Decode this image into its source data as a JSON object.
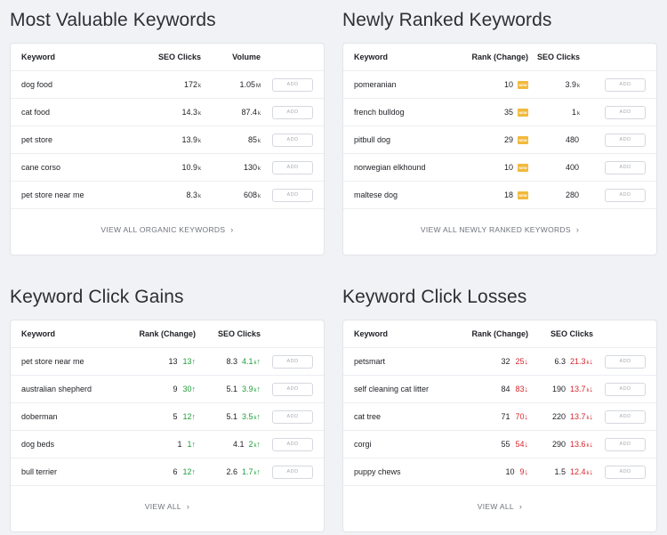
{
  "sections": {
    "most_valuable": {
      "title": "Most Valuable Keywords",
      "headers": {
        "keyword": "Keyword",
        "seo_clicks": "SEO Clicks",
        "volume": "Volume"
      },
      "rows": [
        {
          "keyword": "dog food",
          "clicks": "172",
          "clicks_unit": "k",
          "volume": "1.05",
          "volume_unit": "M",
          "add": "ADD"
        },
        {
          "keyword": "cat food",
          "clicks": "14.3",
          "clicks_unit": "k",
          "volume": "87.4",
          "volume_unit": "k",
          "add": "ADD"
        },
        {
          "keyword": "pet store",
          "clicks": "13.9",
          "clicks_unit": "k",
          "volume": "85",
          "volume_unit": "k",
          "add": "ADD"
        },
        {
          "keyword": "cane corso",
          "clicks": "10.9",
          "clicks_unit": "k",
          "volume": "130",
          "volume_unit": "k",
          "add": "ADD"
        },
        {
          "keyword": "pet store near me",
          "clicks": "8.3",
          "clicks_unit": "k",
          "volume": "608",
          "volume_unit": "k",
          "add": "ADD"
        }
      ],
      "footer": "VIEW ALL ORGANIC KEYWORDS"
    },
    "newly_ranked": {
      "title": "Newly Ranked Keywords",
      "headers": {
        "keyword": "Keyword",
        "rank": "Rank (Change)",
        "seo_clicks": "SEO Clicks"
      },
      "badge": "NEW",
      "rows": [
        {
          "keyword": "pomeranian",
          "rank": "10",
          "clicks": "3.9",
          "clicks_unit": "k",
          "add": "ADD"
        },
        {
          "keyword": "french bulldog",
          "rank": "35",
          "clicks": "1",
          "clicks_unit": "k",
          "add": "ADD"
        },
        {
          "keyword": "pitbull dog",
          "rank": "29",
          "clicks": "480",
          "clicks_unit": "",
          "add": "ADD"
        },
        {
          "keyword": "norwegian elkhound",
          "rank": "10",
          "clicks": "400",
          "clicks_unit": "",
          "add": "ADD"
        },
        {
          "keyword": "maltese dog",
          "rank": "18",
          "clicks": "280",
          "clicks_unit": "",
          "add": "ADD"
        }
      ],
      "footer": "VIEW ALL NEWLY RANKED KEYWORDS"
    },
    "click_gains": {
      "title": "Keyword Click Gains",
      "headers": {
        "keyword": "Keyword",
        "rank": "Rank (Change)",
        "seo_clicks": "SEO Clicks"
      },
      "rows": [
        {
          "keyword": "pet store near me",
          "rank": "13",
          "rank_change": "13",
          "clicks": "8.3",
          "clicks_change": "4.1",
          "clicks_change_unit": "k",
          "add": "ADD"
        },
        {
          "keyword": "australian shepherd",
          "rank": "9",
          "rank_change": "30",
          "clicks": "5.1",
          "clicks_change": "3.9",
          "clicks_change_unit": "k",
          "add": "ADD"
        },
        {
          "keyword": "doberman",
          "rank": "5",
          "rank_change": "12",
          "clicks": "5.1",
          "clicks_change": "3.5",
          "clicks_change_unit": "k",
          "add": "ADD"
        },
        {
          "keyword": "dog beds",
          "rank": "1",
          "rank_change": "1",
          "clicks": "4.1",
          "clicks_change": "2",
          "clicks_change_unit": "k",
          "add": "ADD"
        },
        {
          "keyword": "bull terrier",
          "rank": "6",
          "rank_change": "12",
          "clicks": "2.6",
          "clicks_change": "1.7",
          "clicks_change_unit": "k",
          "add": "ADD"
        }
      ],
      "footer": "VIEW ALL"
    },
    "click_losses": {
      "title": "Keyword Click Losses",
      "headers": {
        "keyword": "Keyword",
        "rank": "Rank (Change)",
        "seo_clicks": "SEO Clicks"
      },
      "rows": [
        {
          "keyword": "petsmart",
          "rank": "32",
          "rank_change": "25",
          "clicks": "6.3",
          "clicks_change": "21.3",
          "clicks_change_unit": "k",
          "add": "ADD"
        },
        {
          "keyword": "self cleaning cat litter",
          "rank": "84",
          "rank_change": "83",
          "clicks": "190",
          "clicks_change": "13.7",
          "clicks_change_unit": "k",
          "add": "ADD"
        },
        {
          "keyword": "cat tree",
          "rank": "71",
          "rank_change": "70",
          "clicks": "220",
          "clicks_change": "13.7",
          "clicks_change_unit": "k",
          "add": "ADD"
        },
        {
          "keyword": "corgi",
          "rank": "55",
          "rank_change": "54",
          "clicks": "290",
          "clicks_change": "13.6",
          "clicks_change_unit": "k",
          "add": "ADD"
        },
        {
          "keyword": "puppy chews",
          "rank": "10",
          "rank_change": "9",
          "clicks": "1.5",
          "clicks_change": "12.4",
          "clicks_change_unit": "k",
          "add": "ADD"
        }
      ],
      "footer": "VIEW ALL"
    }
  },
  "icons": {
    "up": "arrow-up-icon",
    "down": "arrow-down-icon",
    "chevron": "chevron-right-icon"
  },
  "colors": {
    "gain": "#1f9d3a",
    "loss": "#d7262e",
    "badge": "#f2b93b",
    "background": "#f1f2f5"
  }
}
